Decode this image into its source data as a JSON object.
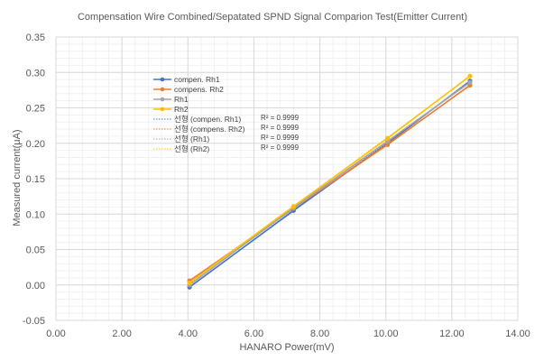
{
  "chart_data": {
    "type": "line",
    "title": "Compensation Wire Combined/Sepatated SPND Signal Comparion Test(Emitter Current)",
    "xlabel": "HANARO Power(mV)",
    "ylabel": "Measured current(μA)",
    "xlim": [
      0,
      14
    ],
    "ylim": [
      -0.05,
      0.35
    ],
    "x_ticks": [
      "0.00",
      "2.00",
      "4.00",
      "6.00",
      "8.00",
      "10.00",
      "12.00",
      "14.00"
    ],
    "y_ticks": [
      "-0.05",
      "0.00",
      "0.05",
      "0.10",
      "0.15",
      "0.20",
      "0.25",
      "0.30",
      "0.35"
    ],
    "x_tick_values": [
      0,
      2,
      4,
      6,
      8,
      10,
      12,
      14
    ],
    "y_tick_values": [
      -0.05,
      0,
      0.05,
      0.1,
      0.15,
      0.2,
      0.25,
      0.3,
      0.35
    ],
    "grid": true,
    "minor_grid": true,
    "legend_position": "upper-left inside plot",
    "series": [
      {
        "name": "compen. Rh1",
        "color": "#4472C4",
        "x": [
          4.05,
          7.2,
          10.05,
          12.55
        ],
        "y": [
          -0.003,
          0.105,
          0.2,
          0.288
        ]
      },
      {
        "name": "compens. Rh2",
        "color": "#ED7D31",
        "x": [
          4.05,
          7.2,
          10.05,
          12.55
        ],
        "y": [
          0.006,
          0.108,
          0.198,
          0.282
        ]
      },
      {
        "name": "Rh1",
        "color": "#A5A5A5",
        "x": [
          4.05,
          7.2,
          10.05,
          12.55
        ],
        "y": [
          0.0,
          0.109,
          0.203,
          0.286
        ]
      },
      {
        "name": "Rh2",
        "color": "#FFC000",
        "x": [
          4.05,
          7.2,
          10.05,
          12.55
        ],
        "y": [
          0.003,
          0.111,
          0.207,
          0.295
        ]
      }
    ],
    "trendlines": [
      {
        "name": "선형 (compen. Rh1)",
        "color": "#4472C4",
        "r2": "R² = 0.9999"
      },
      {
        "name": "선형 (compens. Rh2)",
        "color": "#ED7D31",
        "r2": "R² = 0.9999"
      },
      {
        "name": "선형 (Rh1)",
        "color": "#A5A5A5",
        "r2": "R² = 0.9999"
      },
      {
        "name": "선형 (Rh2)",
        "color": "#FFC000",
        "r2": "R² = 0.9999"
      }
    ]
  }
}
